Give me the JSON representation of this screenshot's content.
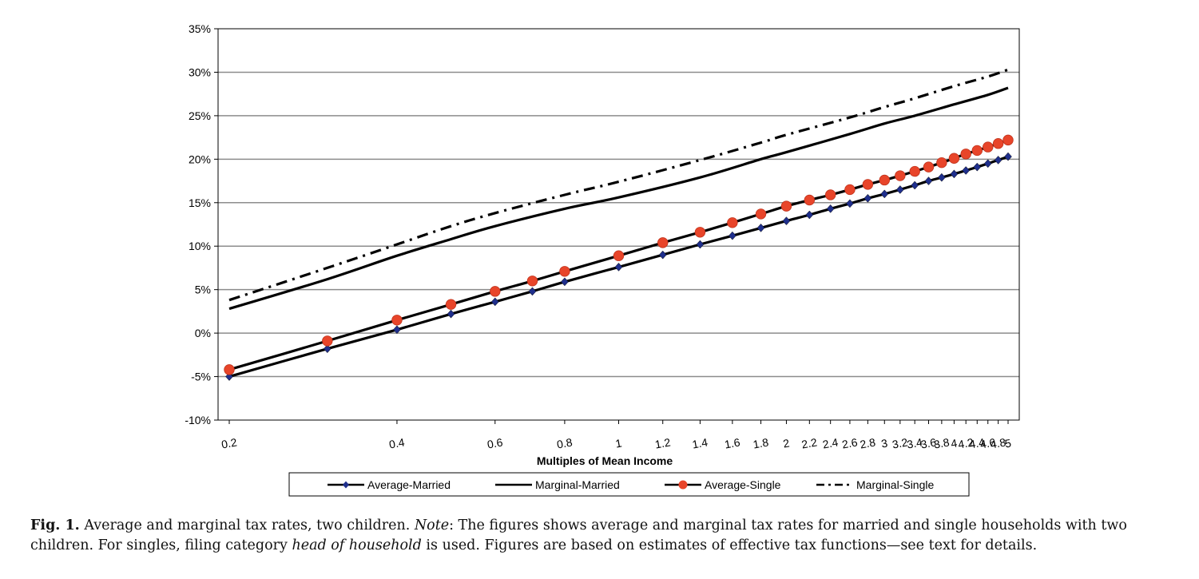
{
  "chart_data": {
    "type": "line",
    "title": "",
    "xlabel": "Multiples of Mean Income",
    "ylabel": "",
    "xlim": [
      0.2,
      5
    ],
    "ylim": [
      -10,
      35
    ],
    "y_ticks": [
      "-10%",
      "-5%",
      "0%",
      "5%",
      "10%",
      "15%",
      "20%",
      "25%",
      "30%",
      "35%"
    ],
    "x_ticks": [
      "0.2",
      "0.4",
      "0.6",
      "0.8",
      "1",
      "1.2",
      "1.4",
      "1.6",
      "1.8",
      "2",
      "2.2",
      "2.4",
      "2.6",
      "2.8",
      "3",
      "3.2",
      "3.4",
      "3.6",
      "3.8",
      "4",
      "4.2",
      "4.4",
      "4.6",
      "4.8",
      "5"
    ],
    "x_scale": "log",
    "grid": "horizontal",
    "legend_position": "bottom",
    "series": [
      {
        "name": "Average-Married",
        "color": "#1f2f8c",
        "marker": "diamond",
        "x": [
          0.2,
          0.3,
          0.4,
          0.5,
          0.6,
          0.7,
          0.8,
          1.0,
          1.2,
          1.4,
          1.6,
          1.8,
          2.0,
          2.2,
          2.4,
          2.6,
          2.8,
          3.0,
          3.2,
          3.4,
          3.6,
          3.8,
          4.0,
          4.2,
          4.4,
          4.6,
          4.8,
          5.0
        ],
        "y": [
          -5.0,
          -1.8,
          0.4,
          2.2,
          3.6,
          4.8,
          5.9,
          7.6,
          9.0,
          10.2,
          11.2,
          12.1,
          12.9,
          13.6,
          14.3,
          14.9,
          15.5,
          16.0,
          16.5,
          17.0,
          17.5,
          17.9,
          18.3,
          18.7,
          19.1,
          19.5,
          19.9,
          20.3
        ]
      },
      {
        "name": "Marginal-Married",
        "color": "#000000",
        "x": [
          0.2,
          0.3,
          0.4,
          0.5,
          0.6,
          0.8,
          1.0,
          1.4,
          1.8,
          2.0,
          2.6,
          3.0,
          3.4,
          4.0,
          4.6,
          5.0
        ],
        "y": [
          2.8,
          6.2,
          8.9,
          10.8,
          12.3,
          14.3,
          15.6,
          17.9,
          20.0,
          20.8,
          22.9,
          24.1,
          25.0,
          26.3,
          27.4,
          28.2
        ]
      },
      {
        "name": "Average-Single",
        "color": "#e8452a",
        "marker": "circle",
        "x": [
          0.2,
          0.3,
          0.4,
          0.5,
          0.6,
          0.7,
          0.8,
          1.0,
          1.2,
          1.4,
          1.6,
          1.8,
          2.0,
          2.2,
          2.4,
          2.6,
          2.8,
          3.0,
          3.2,
          3.4,
          3.6,
          3.8,
          4.0,
          4.2,
          4.4,
          4.6,
          4.8,
          5.0
        ],
        "y": [
          -4.2,
          -0.9,
          1.5,
          3.3,
          4.8,
          6.0,
          7.1,
          8.9,
          10.4,
          11.6,
          12.7,
          13.7,
          14.6,
          15.3,
          15.9,
          16.5,
          17.1,
          17.6,
          18.1,
          18.6,
          19.1,
          19.6,
          20.1,
          20.6,
          21.0,
          21.4,
          21.8,
          22.2
        ]
      },
      {
        "name": "Marginal-Single",
        "color": "#000000",
        "dash": "dash-dot",
        "x": [
          0.2,
          0.3,
          0.4,
          0.5,
          0.6,
          0.8,
          1.0,
          1.4,
          1.8,
          2.0,
          2.6,
          3.0,
          3.4,
          4.0,
          4.6,
          5.0
        ],
        "y": [
          3.8,
          7.5,
          10.2,
          12.3,
          13.8,
          15.9,
          17.4,
          19.9,
          21.9,
          22.8,
          24.8,
          26.0,
          27.0,
          28.4,
          29.5,
          30.3
        ]
      }
    ]
  },
  "caption": {
    "label": "Fig. 1.",
    "text_1": " Average and marginal tax rates, two children. ",
    "note_label": "Note",
    "text_2": ": The figures shows average and marginal tax rates for married and single households with two children. For singles, filing category ",
    "italic_term": "head of household",
    "text_3": " is used. Figures are based on estimates of effective tax functions—see text for details."
  }
}
